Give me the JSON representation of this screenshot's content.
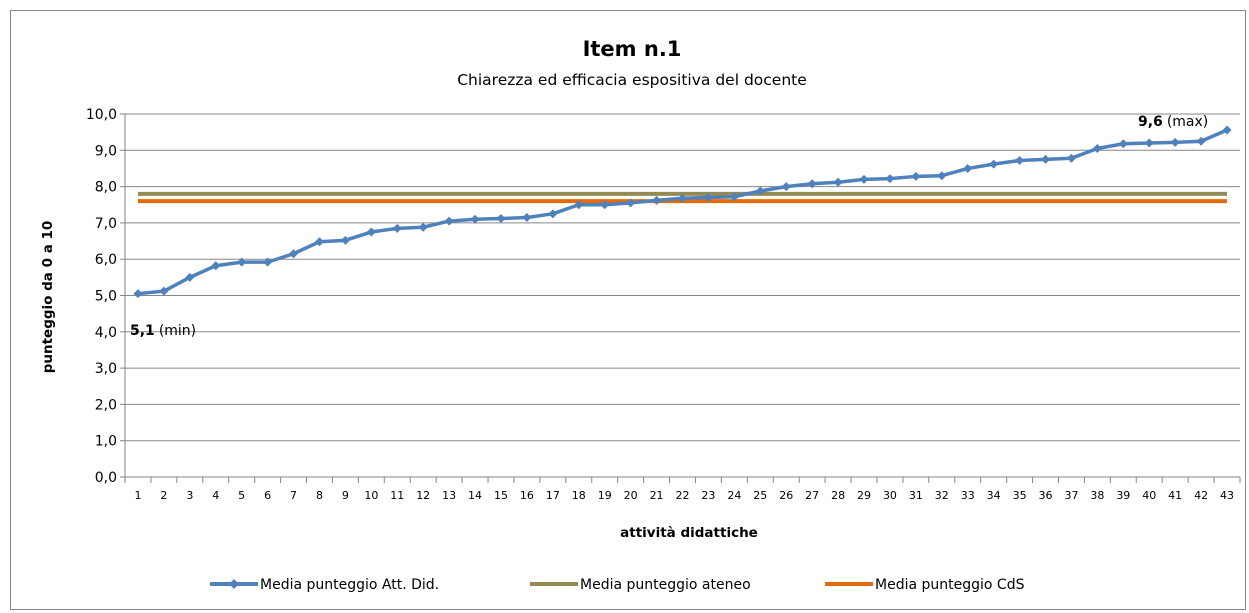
{
  "chart_data": {
    "type": "line",
    "title": "Item n.1",
    "subtitle": "Chiarezza ed efficacia espositiva del docente",
    "xlabel": "attività didattiche",
    "ylabel": "punteggio da 0 a 10",
    "ylim": [
      0,
      10
    ],
    "yticks": [
      "0,0",
      "1,0",
      "2,0",
      "3,0",
      "4,0",
      "5,0",
      "6,0",
      "7,0",
      "8,0",
      "9,0",
      "10,0"
    ],
    "categories": [
      "1",
      "2",
      "3",
      "4",
      "5",
      "6",
      "7",
      "8",
      "9",
      "10",
      "11",
      "12",
      "13",
      "14",
      "15",
      "16",
      "17",
      "18",
      "19",
      "20",
      "21",
      "22",
      "23",
      "24",
      "25",
      "26",
      "27",
      "28",
      "29",
      "30",
      "31",
      "32",
      "33",
      "34",
      "35",
      "36",
      "37",
      "38",
      "39",
      "40",
      "41",
      "42",
      "43"
    ],
    "grid": true,
    "legend_position": "bottom",
    "series": [
      {
        "name": "Media punteggio Att. Did.",
        "color": "#4F81BD",
        "marker": "diamond",
        "values": [
          5.05,
          5.12,
          5.5,
          5.82,
          5.92,
          5.92,
          6.15,
          6.48,
          6.52,
          6.75,
          6.85,
          6.88,
          7.05,
          7.1,
          7.12,
          7.15,
          7.25,
          7.5,
          7.5,
          7.55,
          7.62,
          7.68,
          7.7,
          7.72,
          7.88,
          8.0,
          8.08,
          8.12,
          8.2,
          8.22,
          8.28,
          8.3,
          8.5,
          8.62,
          8.72,
          8.75,
          8.78,
          9.05,
          9.18,
          9.2,
          9.22,
          9.25,
          9.56
        ]
      },
      {
        "name": "Media punteggio ateneo",
        "color": "#948A54",
        "constant": 7.8
      },
      {
        "name": "Media punteggio CdS",
        "color": "#E36C09",
        "constant": 7.6
      }
    ],
    "annotations": [
      {
        "value": "5,1",
        "suffix": "(min)"
      },
      {
        "value": "9,6",
        "suffix": "(max)"
      }
    ]
  }
}
